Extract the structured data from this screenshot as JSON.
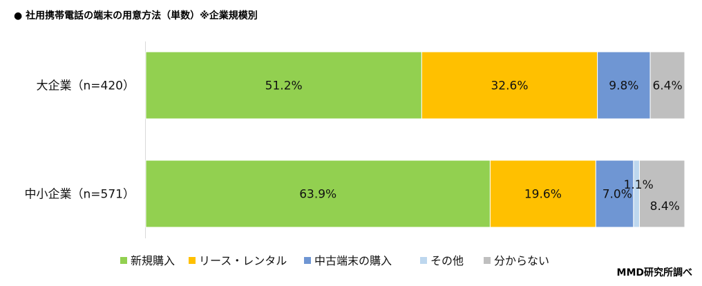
{
  "chart_data": {
    "type": "bar",
    "orientation": "horizontal",
    "stacked": true,
    "percent_stacked": true,
    "title": "●  社用携帯電話の端末の用意方法（単数）※企業規模別",
    "categories": [
      "大企業（n=420）",
      "中小企業（n=571）"
    ],
    "series": [
      {
        "name": "新規購入",
        "color": "#92D050",
        "values": [
          51.2,
          63.9
        ],
        "labels": [
          "51.2%",
          "63.9%"
        ]
      },
      {
        "name": "リース・レンタル",
        "color": "#FFC000",
        "values": [
          32.6,
          19.6
        ],
        "labels": [
          "32.6%",
          "19.6%"
        ]
      },
      {
        "name": "中古端末の購入",
        "color": "#6F96D3",
        "values": [
          9.8,
          7.0
        ],
        "labels": [
          "9.8%",
          "7.0%"
        ]
      },
      {
        "name": "その他",
        "color": "#BDD7EE",
        "values": [
          0.0,
          1.1
        ],
        "labels": [
          "",
          "1.1%"
        ]
      },
      {
        "name": "分からない",
        "color": "#BFBFBF",
        "values": [
          6.4,
          8.4
        ],
        "labels": [
          "6.4%",
          "8.4%"
        ]
      }
    ],
    "xlim": [
      0,
      100
    ],
    "grid": false,
    "legend": "bottom"
  },
  "source": "MMD研究所調べ"
}
